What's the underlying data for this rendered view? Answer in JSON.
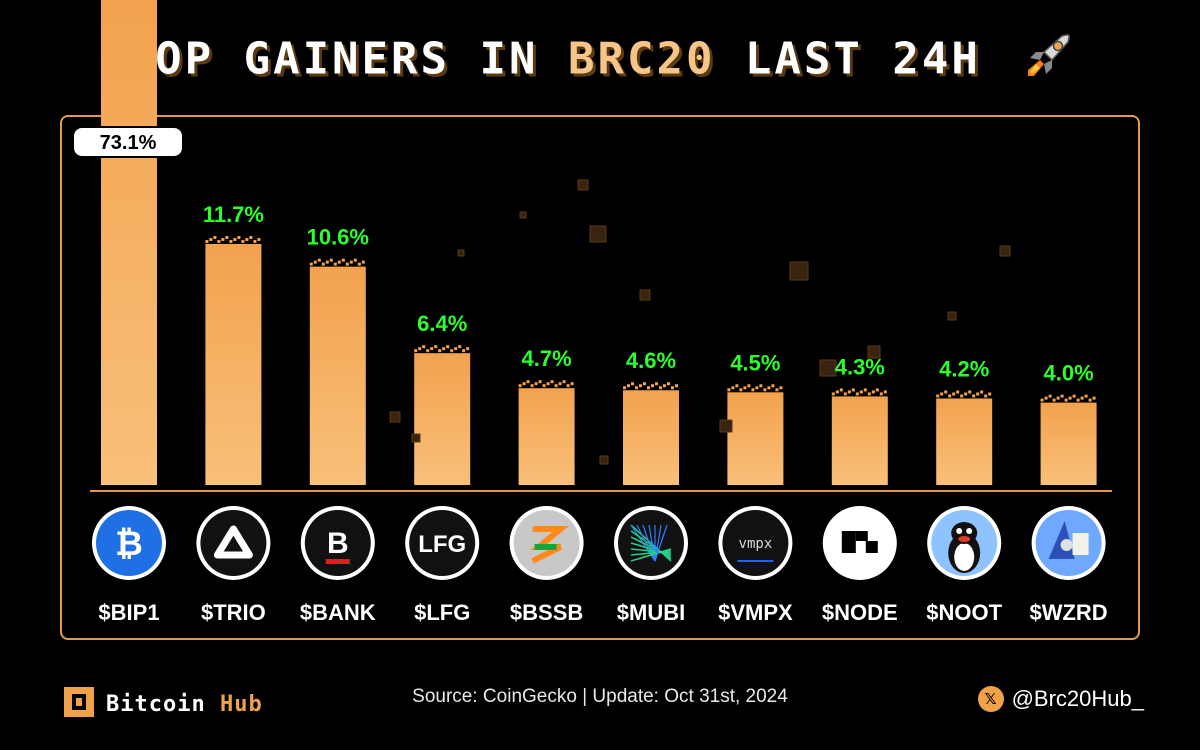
{
  "title": {
    "part1": "TOP GAINERS IN ",
    "accent": "BRC20",
    "part2": " LAST 24H"
  },
  "icons": {
    "rocket": "rocket-icon",
    "brand_logo": "bitcoin-hub-logo-icon",
    "x": "x-logo-icon"
  },
  "colors": {
    "background": "#000000",
    "bar": "#f2a24e",
    "bar_highlight": "#f9c07a",
    "value_green": "#2bff2b",
    "frame": "#e39a45",
    "accent": "#f7c58a"
  },
  "chart_data": {
    "type": "bar",
    "categories": [
      "$BIP1",
      "$TRIO",
      "$BANK",
      "$LFG",
      "$BSSB",
      "$MUBI",
      "$VMPX",
      "$NODE",
      "$NOOT",
      "$WZRD"
    ],
    "values": [
      73.1,
      11.7,
      10.6,
      6.4,
      4.7,
      4.6,
      4.5,
      4.3,
      4.2,
      4.0
    ],
    "value_labels": [
      "73.1%",
      "11.7%",
      "10.6%",
      "6.4%",
      "4.7%",
      "4.6%",
      "4.5%",
      "4.3%",
      "4.2%",
      "4.0%"
    ],
    "title": "TOP GAINERS IN BRC20 LAST 24H",
    "xlabel": "",
    "ylabel": "",
    "grid": false,
    "token_logos": [
      {
        "symbol": "$BIP1",
        "logo": "bitcoin-b",
        "logo_text": ""
      },
      {
        "symbol": "$TRIO",
        "logo": "triangle",
        "logo_text": ""
      },
      {
        "symbol": "$BANK",
        "logo": "letter-b",
        "logo_text": ""
      },
      {
        "symbol": "$LFG",
        "logo": "text",
        "logo_text": "LFG"
      },
      {
        "symbol": "$BSSB",
        "logo": "flag-s",
        "logo_text": ""
      },
      {
        "symbol": "$MUBI",
        "logo": "grid-lines",
        "logo_text": ""
      },
      {
        "symbol": "$VMPX",
        "logo": "text-dark",
        "logo_text": "vmpx"
      },
      {
        "symbol": "$NODE",
        "logo": "blocks",
        "logo_text": ""
      },
      {
        "symbol": "$NOOT",
        "logo": "penguin",
        "logo_text": ""
      },
      {
        "symbol": "$WZRD",
        "logo": "wizard",
        "logo_text": ""
      }
    ]
  },
  "footer": {
    "source": "Source: CoinGecko  |  Update: Oct 31st, 2024",
    "brand_name_1": "Bitcoin",
    "brand_name_2": " Hub",
    "handle": "@Brc20Hub_"
  }
}
